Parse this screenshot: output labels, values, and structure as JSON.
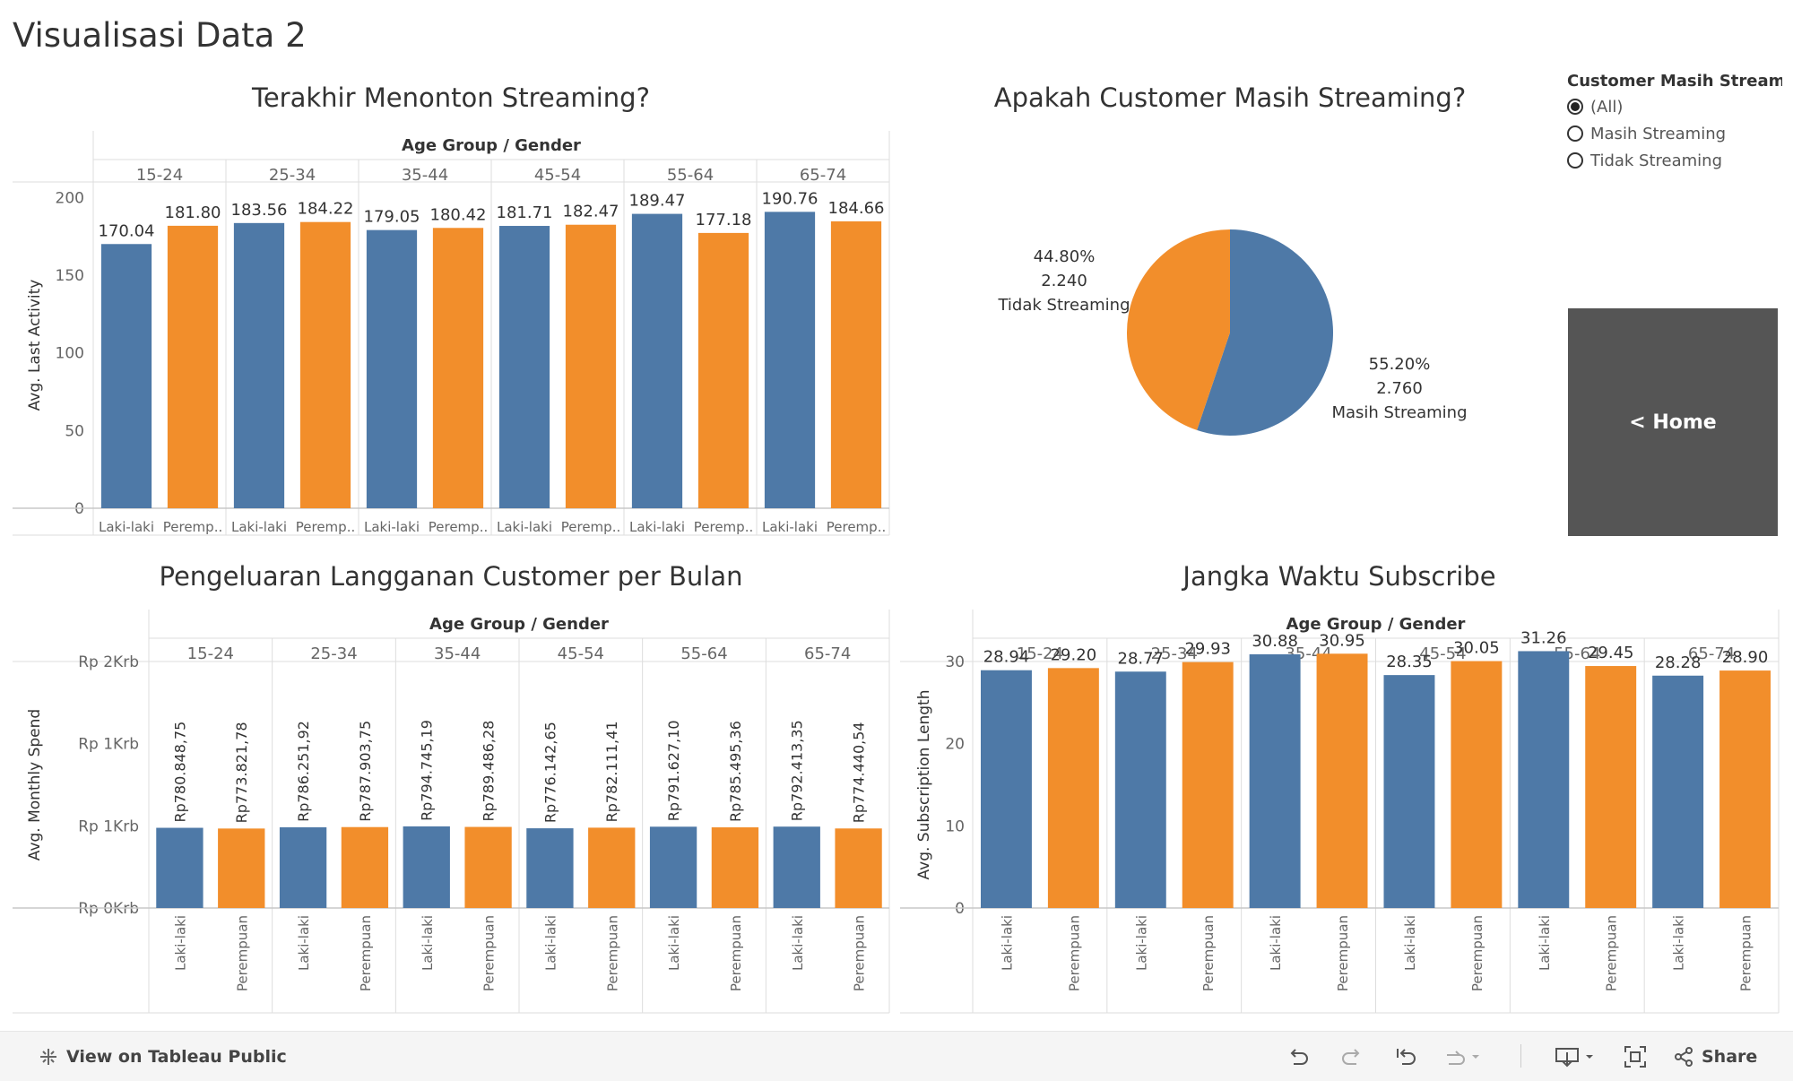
{
  "dashboard_title": "Visualisasi Data 2",
  "colors": {
    "male": "#4E79A7",
    "female": "#F28E2B"
  },
  "header_group_label": "Age Group / Gender",
  "age_groups": [
    "15-24",
    "25-34",
    "35-44",
    "45-54",
    "55-64",
    "65-74"
  ],
  "filter": {
    "title": "Customer Masih Streami...",
    "options": [
      {
        "label": "(All)",
        "selected": true
      },
      {
        "label": "Masih Streaming",
        "selected": false
      },
      {
        "label": "Tidak Streaming",
        "selected": false
      }
    ]
  },
  "home_button": {
    "label": "< Home"
  },
  "toolbar": {
    "view_on": "View on Tableau Public",
    "share": "Share",
    "icons": [
      "tableau-logo-icon",
      "undo-icon",
      "redo-icon",
      "revert-icon",
      "refresh-icon",
      "download-icon",
      "fullscreen-icon",
      "share-icon"
    ]
  },
  "chart_data": [
    {
      "id": "last_activity",
      "type": "bar",
      "title": "Terakhir Menonton Streaming?",
      "ylabel": "Avg. Last Activity",
      "ylim": [
        0,
        210
      ],
      "yticks": [
        0,
        50,
        100,
        150,
        200
      ],
      "ytick_labels": [
        "0",
        "50",
        "100",
        "150",
        "200"
      ],
      "gender_labels": [
        "Laki-laki",
        "Peremp.."
      ],
      "series": [
        {
          "values": [
            170.04,
            183.56,
            179.05,
            181.71,
            189.47,
            190.76
          ],
          "labels": [
            "170.04",
            "183.56",
            "179.05",
            "181.71",
            "189.47",
            "190.76"
          ]
        },
        {
          "values": [
            181.8,
            184.22,
            180.42,
            182.47,
            177.18,
            184.66
          ],
          "labels": [
            "181.80",
            "184.22",
            "180.42",
            "182.47",
            "177.18",
            "184.66"
          ]
        }
      ]
    },
    {
      "id": "streaming_status",
      "type": "pie",
      "title": "Apakah Customer Masih Streaming?",
      "slices": [
        {
          "name": "Masih Streaming",
          "value": 2760,
          "value_label": "2.760",
          "percent_label": "55.20%"
        },
        {
          "name": "Tidak Streaming",
          "value": 2240,
          "value_label": "2.240",
          "percent_label": "44.80%"
        }
      ]
    },
    {
      "id": "monthly_spend",
      "type": "bar",
      "title": "Pengeluaran Langganan Customer per Bulan",
      "ylabel": "Avg. Monthly Spend",
      "ylim": [
        0,
        2400
      ],
      "yticks": [
        0,
        800,
        1600,
        2400
      ],
      "ytick_labels": [
        "Rp 0Krb",
        "Rp 1Krb",
        "Rp 1Krb",
        "Rp 2Krb"
      ],
      "gender_labels": [
        "Laki-laki",
        "Perempuan"
      ],
      "series": [
        {
          "values": [
            780.84875,
            786.25192,
            794.74519,
            776.14265,
            791.6271,
            792.41335
          ],
          "labels": [
            "Rp780.848,75",
            "Rp786.251,92",
            "Rp794.745,19",
            "Rp776.142,65",
            "Rp791.627,10",
            "Rp792.413,35"
          ]
        },
        {
          "values": [
            773.82178,
            787.90375,
            789.48628,
            782.11141,
            785.49536,
            774.44054
          ],
          "labels": [
            "Rp773.821,78",
            "Rp787.903,75",
            "Rp789.486,28",
            "Rp782.111,41",
            "Rp785.495,36",
            "Rp774.440,54"
          ]
        }
      ]
    },
    {
      "id": "subscription_length",
      "type": "bar",
      "title": "Jangka Waktu Subscribe",
      "ylabel": "Avg. Subscription Length",
      "ylim": [
        0,
        30
      ],
      "yticks": [
        0,
        10,
        20,
        30
      ],
      "ytick_labels": [
        "0",
        "10",
        "20",
        "30"
      ],
      "gender_labels": [
        "Laki-laki",
        "Perempuan"
      ],
      "series": [
        {
          "values": [
            28.94,
            28.77,
            30.88,
            28.35,
            31.26,
            28.28
          ],
          "labels": [
            "28.94",
            "28.77",
            "30.88",
            "28.35",
            "31.26",
            "28.28"
          ]
        },
        {
          "values": [
            29.2,
            29.93,
            30.95,
            30.05,
            29.45,
            28.9
          ],
          "labels": [
            "29.20",
            "29.93",
            "30.95",
            "30.05",
            "29.45",
            "28.90"
          ]
        }
      ]
    }
  ]
}
